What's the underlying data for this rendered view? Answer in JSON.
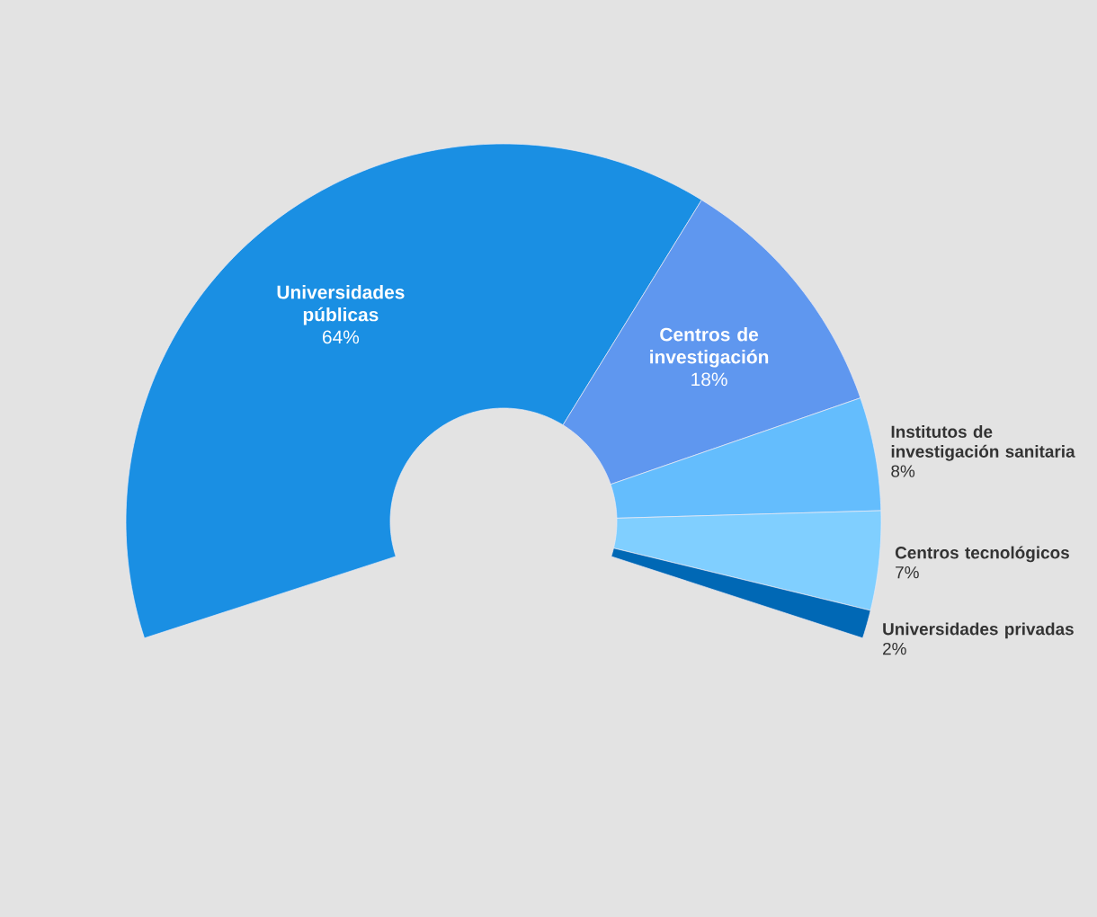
{
  "chart_data": {
    "type": "donut",
    "categories": [
      "Universidades públicas",
      "Centros de investigación",
      "Institutos de investigación sanitaria",
      "Centros tecnológicos",
      "Universidades privadas"
    ],
    "values": [
      64,
      18,
      8,
      7,
      2
    ],
    "colors": [
      "#1a8fe3",
      "#5f97ef",
      "#64bdfd",
      "#80cfff",
      "#0068b5"
    ],
    "value_labels": [
      "64%",
      "18%",
      "8%",
      "7%",
      "2%"
    ]
  }
}
